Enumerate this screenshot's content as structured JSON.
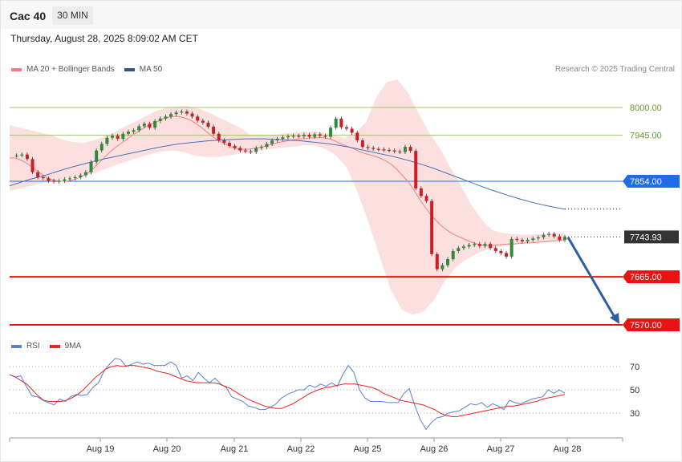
{
  "header": {
    "symbol": "Cac 40",
    "timeframe": "30 MIN"
  },
  "datetime": "Thursday, August 28, 2025 8:09:02 AM CET",
  "legend_top": [
    {
      "label": "MA 20 + Bollinger Bands",
      "color": "#f08080"
    },
    {
      "label": "MA 50",
      "color": "#2f5597"
    }
  ],
  "legend_bottom": [
    {
      "label": "RSI",
      "color": "#5b7fd6"
    },
    {
      "label": "9MA",
      "color": "#e8262a"
    }
  ],
  "research": "Research © 2025 Trading Central",
  "chart_data": {
    "type": "candlestick",
    "x_tick_labels": [
      "Aug 19",
      "Aug 20",
      "Aug 21",
      "Aug 22",
      "Aug 25",
      "Aug 26",
      "Aug 27",
      "Aug 28"
    ],
    "price_levels": [
      {
        "value": 8000.0,
        "label": "8000.00",
        "style": "line",
        "color": "#9cc46a"
      },
      {
        "value": 7945.0,
        "label": "7945.00",
        "style": "line",
        "color": "#9cc46a"
      },
      {
        "value": 7854.0,
        "label": "7854.00",
        "style": "line-tag",
        "color": "#1e6ee8"
      },
      {
        "value": 7743.93,
        "label": "7743.93",
        "style": "current",
        "color": "#333333"
      },
      {
        "value": 7665.0,
        "label": "7665.00",
        "style": "line-tag",
        "color": "#ee1111"
      },
      {
        "value": 7570.0,
        "label": "7570.00",
        "style": "line-tag",
        "color": "#ee1111"
      }
    ],
    "price_series": [
      7905,
      7905,
      7907,
      7898,
      7872,
      7862,
      7860,
      7855,
      7853,
      7855,
      7858,
      7860,
      7862,
      7866,
      7872,
      7892,
      7915,
      7928,
      7940,
      7944,
      7938,
      7948,
      7952,
      7955,
      7963,
      7968,
      7960,
      7973,
      7978,
      7982,
      7987,
      7990,
      7992,
      7988,
      7982,
      7974,
      7970,
      7962,
      7948,
      7935,
      7930,
      7924,
      7920,
      7915,
      7913,
      7912,
      7920,
      7922,
      7928,
      7935,
      7938,
      7941,
      7943,
      7944,
      7943,
      7946,
      7942,
      7947,
      7944,
      7942,
      7960,
      7978,
      7961,
      7958,
      7950,
      7935,
      7922,
      7920,
      7918,
      7917,
      7916,
      7915,
      7913,
      7912,
      7922,
      7914,
      7840,
      7825,
      7815,
      7710,
      7680,
      7688,
      7700,
      7716,
      7722,
      7725,
      7728,
      7730,
      7726,
      7730,
      7722,
      7716,
      7712,
      7705,
      7740,
      7738,
      7735,
      7738,
      7741,
      7743,
      7748,
      7750,
      7745,
      7738,
      7743.93
    ],
    "ma20": [
      7900,
      7900,
      7896,
      7890,
      7882,
      7874,
      7866,
      7859,
      7856,
      7854,
      7854,
      7856,
      7859,
      7864,
      7871,
      7880,
      7891,
      7902,
      7913,
      7922,
      7930,
      7938,
      7946,
      7953,
      7960,
      7966,
      7970,
      7976,
      7980,
      7982,
      7982,
      7980,
      7976,
      7970,
      7962,
      7953,
      7944,
      7936,
      7930,
      7925,
      7920,
      7917,
      7917,
      7918,
      7920,
      7922,
      7925,
      7928,
      7931,
      7933,
      7935,
      7937,
      7938,
      7939,
      7940,
      7940,
      7940,
      7938,
      7934,
      7928,
      7924,
      7920,
      7915,
      7910,
      7907,
      7904,
      7900,
      7895,
      7888,
      7878,
      7866,
      7854,
      7838,
      7820,
      7804,
      7789,
      7777,
      7766,
      7757,
      7750,
      7745,
      7740,
      7735,
      7731,
      7728,
      7727,
      7727,
      7728,
      7729,
      7730,
      7730,
      7731,
      7732,
      7732,
      7733,
      7734,
      7735,
      7736,
      7737,
      7738
    ],
    "ma50": [
      7845,
      7851,
      7857,
      7862,
      7867,
      7873,
      7879,
      7884,
      7889,
      7894,
      7898,
      7902,
      7906,
      7910,
      7914,
      7918,
      7922,
      7925,
      7928,
      7930,
      7932,
      7934,
      7935,
      7936,
      7937,
      7938,
      7938,
      7938,
      7937,
      7936,
      7935,
      7934,
      7932,
      7930,
      7928,
      7925,
      7922,
      7918,
      7914,
      7910,
      7906,
      7902,
      7897,
      7892,
      7886,
      7880,
      7873,
      7866,
      7859,
      7852,
      7845,
      7838,
      7832,
      7826,
      7820,
      7815,
      7810,
      7806,
      7802,
      7799
    ],
    "bollinger_upper": [
      7965,
      7960,
      7955,
      7950,
      7945,
      7937,
      7932,
      7930,
      7935,
      7942,
      7951,
      7962,
      7972,
      7983,
      7993,
      8000,
      8002,
      8003,
      7998,
      7990,
      7980,
      7970,
      7960,
      7945,
      7945,
      7946,
      7948,
      7950,
      7952,
      7952,
      7950,
      7945,
      7940,
      7950,
      7970,
      8020,
      8050,
      8055,
      8030,
      7990,
      7952,
      7922,
      7884,
      7849,
      7810,
      7780,
      7758,
      7752,
      7750,
      7748,
      7749,
      7750,
      7751,
      7752
    ],
    "bollinger_lower": [
      7835,
      7840,
      7845,
      7850,
      7856,
      7860,
      7862,
      7865,
      7872,
      7880,
      7888,
      7895,
      7902,
      7908,
      7913,
      7915,
      7912,
      7905,
      7902,
      7902,
      7905,
      7908,
      7912,
      7915,
      7918,
      7920,
      7922,
      7925,
      7925,
      7918,
      7905,
      7880,
      7830,
      7770,
      7705,
      7640,
      7600,
      7590,
      7596,
      7620,
      7658,
      7684,
      7700,
      7712,
      7720,
      7724,
      7728,
      7731,
      7733,
      7734,
      7735,
      7736
    ],
    "ylim": [
      7520,
      8100
    ],
    "rsi": [
      63,
      61,
      62,
      53,
      45,
      44,
      41,
      39,
      37,
      42,
      40,
      44,
      46,
      45,
      46,
      52,
      56,
      66,
      72,
      77,
      76,
      70,
      72,
      74,
      72,
      73,
      71,
      71,
      71,
      74,
      71,
      60,
      62,
      58,
      65,
      60,
      56,
      60,
      55,
      52,
      44,
      42,
      40,
      36,
      35,
      33,
      33,
      35,
      38,
      43,
      46,
      48,
      50,
      50,
      54,
      52,
      55,
      53,
      56,
      53,
      63,
      71,
      65,
      50,
      43,
      40,
      40,
      40,
      39,
      39,
      39,
      47,
      51,
      36,
      24,
      16,
      22,
      26,
      27,
      30,
      31,
      32,
      35,
      38,
      37,
      39,
      35,
      38,
      36,
      33,
      41,
      39,
      38,
      40,
      42,
      43,
      44,
      50,
      47,
      50,
      47
    ],
    "rsi_ma9": [
      63,
      61,
      58,
      55,
      50,
      45,
      41,
      40,
      40,
      40,
      41,
      43,
      46,
      50,
      55,
      60,
      64,
      68,
      70,
      71,
      70,
      71,
      71,
      70,
      69,
      68,
      66,
      65,
      64,
      62,
      60,
      58,
      57,
      56,
      56,
      56,
      56,
      55,
      53,
      51,
      48,
      45,
      42,
      40,
      38,
      36,
      35,
      34,
      34,
      36,
      38,
      41,
      44,
      47,
      49,
      51,
      52,
      53,
      54,
      55,
      55,
      55,
      54,
      53,
      52,
      50,
      47,
      45,
      43,
      41,
      40,
      39,
      38,
      37,
      35,
      33,
      30,
      28,
      27,
      27,
      28,
      29,
      30,
      31,
      32,
      33,
      34,
      35,
      36,
      36,
      37,
      38,
      39,
      40,
      42,
      43,
      44,
      45,
      46
    ],
    "rsi_levels": [
      70,
      50,
      30
    ],
    "rsi_ylim": [
      0,
      100
    ]
  }
}
